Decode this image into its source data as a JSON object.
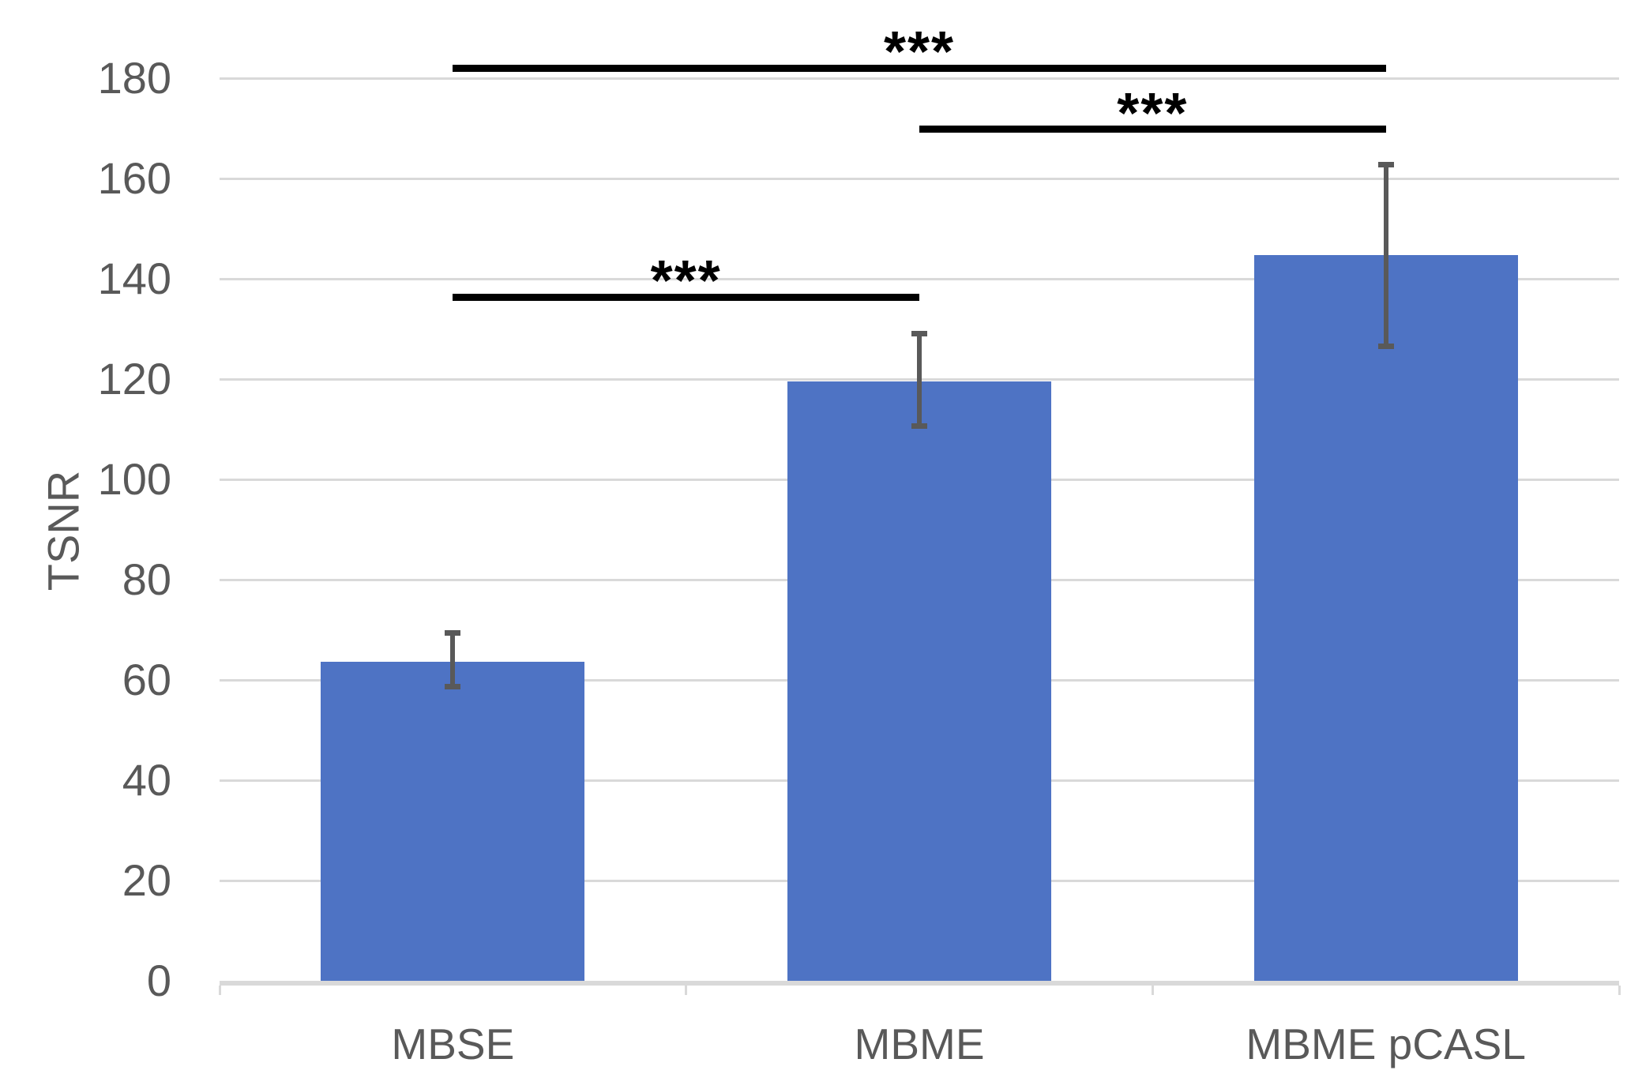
{
  "chart_data": {
    "type": "bar",
    "title": "",
    "xlabel": "",
    "ylabel": "TSNR",
    "categories": [
      "MBSE",
      "MBME",
      "MBME pCASL"
    ],
    "values": [
      63.6,
      119.5,
      144.7
    ],
    "error_plus": [
      5.7,
      9.5,
      18.1
    ],
    "error_minus": [
      5.0,
      8.9,
      18.1
    ],
    "ylim": [
      0,
      180
    ],
    "ytick_step": 20,
    "yticks": [
      0,
      20,
      40,
      60,
      80,
      100,
      120,
      140,
      160,
      180
    ],
    "grid": "horizontal",
    "legend": "none",
    "significance_brackets": [
      {
        "from": "MBSE",
        "to": "MBME pCASL",
        "label": "***",
        "height_value": 182.0
      },
      {
        "from": "MBME",
        "to": "MBME pCASL",
        "label": "***",
        "height_value": 169.8
      },
      {
        "from": "MBSE",
        "to": "MBME",
        "label": "***",
        "height_value": 136.3
      }
    ],
    "colors": {
      "bar": "#4E73C4",
      "error_bar": "#595959",
      "gridline": "#D9D9D9",
      "axis_line": "#D9D9D9",
      "tick_text": "#595959",
      "bracket": "#000000",
      "background": "#FFFFFF"
    }
  }
}
